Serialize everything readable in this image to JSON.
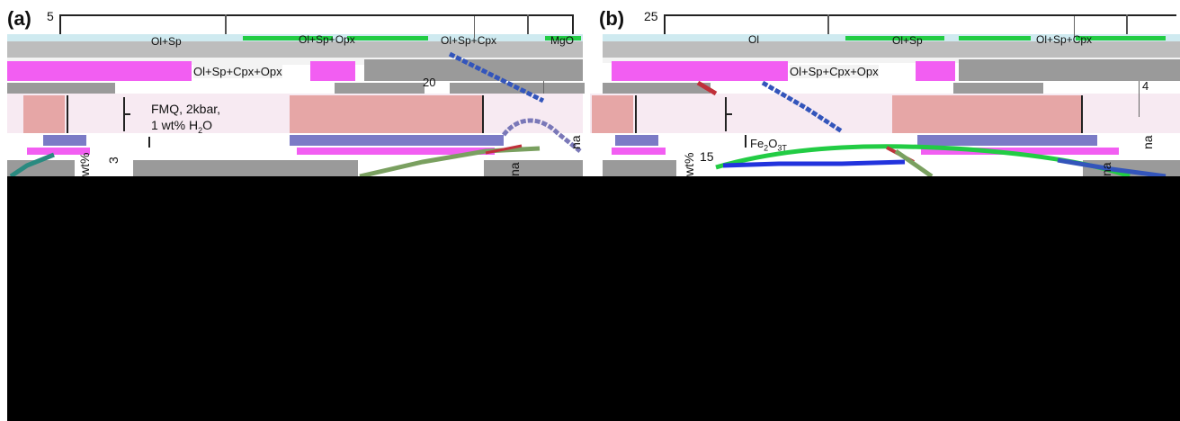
{
  "panels": [
    {
      "id": "a",
      "panel_label": "(a)",
      "top_tick": "5",
      "assemblage_1": "Ol+Sp",
      "assemblage_2": "Ol+Sp+Opx",
      "assemblage_3": "Ol+Sp+Cpx",
      "assemblage_4": "Ol+Sp+Cpx+Opx",
      "oxide_label": "MgO",
      "condition_line_1": "FMQ, 2kbar,",
      "condition_line_2_prefix": "1 wt% H",
      "condition_line_2_sub": "2",
      "condition_line_2_suffix": "O",
      "mid_tick": "20",
      "side_tick": "3",
      "axis_fragment_1": "wt%",
      "axis_fragment_2": "na",
      "axis_fragment_3": "na"
    },
    {
      "id": "b",
      "panel_label": "(b)",
      "top_tick": "25",
      "assemblage_1": "Ol",
      "assemblage_2": "Ol+Sp",
      "assemblage_3": "Ol+Sp+Cpx",
      "assemblage_4": "Ol+Sp+Cpx+Opx",
      "oxide_label_prefix": "Fe",
      "oxide_label_sub1": "2",
      "oxide_label_mid": "O",
      "oxide_label_sub2": "3T",
      "mid_tick": "15",
      "side_tick": "4",
      "axis_fragment_1": "wt%",
      "axis_fragment_2": "na",
      "axis_fragment_3": "na"
    }
  ],
  "colors": {
    "magenta": "#f25ef2",
    "pink": "#e6a6a6",
    "periwinkle": "#7b7bc6",
    "gray": "#9a9a9a",
    "light_cyan": "#cfeaf0",
    "light_pink": "#f5e6f0",
    "green": "#22cc44",
    "blue_line": "#3355bb",
    "red_line": "#c0303a",
    "olive_line": "#7aa060",
    "teal_line": "#2a8a80",
    "purple_line": "#7a78b8"
  }
}
